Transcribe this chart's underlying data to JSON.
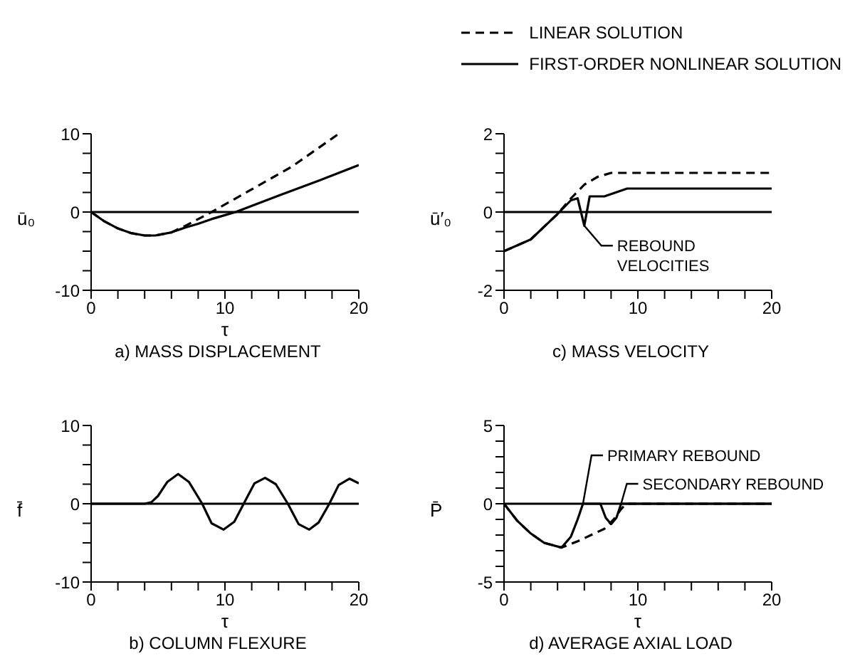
{
  "chart_data": [
    {
      "type": "line",
      "title": "a) MASS DISPLACEMENT",
      "xlabel": "τ",
      "ylabel": "ū₀",
      "legend": "top right",
      "xlim": [
        0,
        20
      ],
      "ylim": [
        -10,
        10
      ],
      "xticks": [
        0,
        {
          "value": 2,
          "label": null
        },
        {
          "value": 4,
          "label": null
        },
        {
          "value": 6,
          "label": null
        },
        {
          "value": 8,
          "label": null
        },
        10,
        {
          "value": 12,
          "label": null
        },
        {
          "value": 14,
          "label": null
        },
        {
          "value": 16,
          "label": null
        },
        {
          "value": 18,
          "label": null
        },
        20
      ],
      "yticks": [
        -10,
        {
          "value": -7.5,
          "label": null
        },
        {
          "value": -5,
          "label": null
        },
        {
          "value": -2.5,
          "label": null
        },
        0,
        {
          "value": 2.5,
          "label": null
        },
        {
          "value": 5,
          "label": null
        },
        {
          "value": 7.5,
          "label": null
        },
        10
      ],
      "ref_lines": [
        {
          "axis": "y",
          "value": 0,
          "color": "#000000"
        }
      ],
      "series": [
        {
          "name": "LINEAR SOLUTION",
          "color": "#000000",
          "line_style": "dashed",
          "x": [
            0,
            1,
            2,
            3,
            4,
            4.8,
            6,
            7,
            8,
            9,
            12,
            15,
            18.5
          ],
          "values": [
            0,
            -1.2,
            -2.1,
            -2.7,
            -3,
            -3,
            -2.6,
            -1.8,
            -0.9,
            0,
            2.9,
            5.8,
            10
          ]
        },
        {
          "name": "FIRST-ORDER NONLINEAR SOLUTION",
          "color": "#000000",
          "line_style": "solid",
          "x": [
            0,
            1,
            2,
            3,
            4,
            4.8,
            6,
            7,
            8,
            9,
            10,
            10.8,
            14,
            17,
            20
          ],
          "values": [
            0,
            -1.2,
            -2.1,
            -2.7,
            -3,
            -3,
            -2.6,
            -2,
            -1.5,
            -0.9,
            -0.4,
            0,
            2.1,
            4,
            6
          ]
        }
      ]
    },
    {
      "type": "line",
      "title": "c) MASS VELOCITY",
      "ylabel": "ū′₀",
      "xlim": [
        0,
        20
      ],
      "ylim": [
        -2,
        2
      ],
      "xticks": [
        0,
        {
          "value": 2,
          "label": null
        },
        {
          "value": 4,
          "label": null
        },
        {
          "value": 6,
          "label": null
        },
        {
          "value": 8,
          "label": null
        },
        10,
        {
          "value": 12,
          "label": null
        },
        {
          "value": 14,
          "label": null
        },
        {
          "value": 16,
          "label": null
        },
        {
          "value": 18,
          "label": null
        },
        20
      ],
      "yticks": [
        -2,
        {
          "value": -1.5,
          "label": null
        },
        {
          "value": -1,
          "label": null
        },
        {
          "value": -0.5,
          "label": null
        },
        0,
        {
          "value": 0.5,
          "label": null
        },
        {
          "value": 1,
          "label": null
        },
        {
          "value": 1.5,
          "label": null
        },
        2
      ],
      "ref_lines": [
        {
          "axis": "y",
          "value": 0,
          "color": "#000000"
        }
      ],
      "annotations": [
        {
          "text": "REBOUND VELOCITIES",
          "x": 6,
          "y": -0.35
        }
      ],
      "series": [
        {
          "color": "#000000",
          "line_style": "dashed",
          "x": [
            0,
            2,
            4,
            5,
            6,
            7,
            8,
            20
          ],
          "values": [
            -1,
            -0.7,
            -0.05,
            0.35,
            0.7,
            0.9,
            1,
            1
          ]
        },
        {
          "color": "#000000",
          "line_style": "solid",
          "x": [
            0,
            2,
            4,
            5,
            5.5,
            6,
            6.4,
            7.5,
            9.2,
            20
          ],
          "values": [
            -1,
            -0.7,
            -0.05,
            0.3,
            0.35,
            -0.35,
            0.4,
            0.4,
            0.6,
            0.6
          ]
        }
      ]
    },
    {
      "type": "line",
      "title": "b) COLUMN FLEXURE",
      "xlabel": "τ",
      "ylabel": "f̄",
      "xlim": [
        0,
        20
      ],
      "ylim": [
        -10,
        10
      ],
      "xticks": [
        0,
        {
          "value": 2,
          "label": null
        },
        {
          "value": 4,
          "label": null
        },
        {
          "value": 6,
          "label": null
        },
        {
          "value": 8,
          "label": null
        },
        10,
        {
          "value": 12,
          "label": null
        },
        {
          "value": 14,
          "label": null
        },
        {
          "value": 16,
          "label": null
        },
        {
          "value": 18,
          "label": null
        },
        20
      ],
      "yticks": [
        -10,
        {
          "value": -7.5,
          "label": null
        },
        {
          "value": -5,
          "label": null
        },
        {
          "value": -2.5,
          "label": null
        },
        0,
        {
          "value": 2.5,
          "label": null
        },
        {
          "value": 5,
          "label": null
        },
        {
          "value": 7.5,
          "label": null
        },
        10
      ],
      "ref_lines": [
        {
          "axis": "y",
          "value": 0,
          "color": "#000000"
        }
      ],
      "series": [
        {
          "color": "#000000",
          "line_style": "solid",
          "x": [
            0,
            4,
            4.5,
            5,
            5.7,
            6.5,
            7.3,
            8.3,
            9,
            9.9,
            10.7,
            11.4,
            12.2,
            13,
            13.8,
            14.7,
            15.5,
            16.3,
            17,
            17.8,
            18.5,
            19.3,
            20
          ],
          "values": [
            0,
            0,
            0.2,
            1,
            2.8,
            3.8,
            2.8,
            0,
            -2.5,
            -3.3,
            -2.3,
            0,
            2.6,
            3.3,
            2.5,
            0,
            -2.6,
            -3.3,
            -2.4,
            0,
            2.4,
            3.2,
            2.6
          ]
        }
      ]
    },
    {
      "type": "line",
      "title": "d) AVERAGE AXIAL LOAD",
      "xlabel": "τ",
      "ylabel": "P̄",
      "xlim": [
        0,
        20
      ],
      "ylim": [
        -5,
        5
      ],
      "xticks": [
        0,
        {
          "value": 2,
          "label": null
        },
        {
          "value": 4,
          "label": null
        },
        {
          "value": 6,
          "label": null
        },
        {
          "value": 8,
          "label": null
        },
        10,
        {
          "value": 12,
          "label": null
        },
        {
          "value": 14,
          "label": null
        },
        {
          "value": 16,
          "label": null
        },
        {
          "value": 18,
          "label": null
        },
        20
      ],
      "yticks": [
        -5,
        {
          "value": -4,
          "label": null
        },
        {
          "value": -3,
          "label": null
        },
        {
          "value": -2,
          "label": null
        },
        {
          "value": -1,
          "label": null
        },
        0,
        {
          "value": 1,
          "label": null
        },
        {
          "value": 2,
          "label": null
        },
        {
          "value": 3,
          "label": null
        },
        {
          "value": 4,
          "label": null
        },
        5
      ],
      "ref_lines": [
        {
          "axis": "y",
          "value": 0,
          "color": "#000000"
        }
      ],
      "annotations": [
        {
          "text": "PRIMARY REBOUND",
          "x": 5.9,
          "y": 0
        },
        {
          "text": "SECONDARY REBOUND",
          "x": 8.75,
          "y": 0
        }
      ],
      "series": [
        {
          "color": "#000000",
          "line_style": "dashed",
          "x": [
            0,
            1,
            2,
            3,
            4.3,
            5.5,
            6.5,
            7.5,
            8.2,
            8.7,
            9.1,
            20
          ],
          "values": [
            0,
            -1.1,
            -1.9,
            -2.5,
            -2.8,
            -2.4,
            -2,
            -1.6,
            -1,
            -0.4,
            0,
            0
          ]
        },
        {
          "color": "#000000",
          "line_style": "solid",
          "x": [
            0,
            1,
            2,
            3,
            4.3,
            5,
            5.5,
            5.9,
            7.2,
            7.6,
            8,
            8.4,
            8.75,
            20
          ],
          "values": [
            0,
            -1.1,
            -1.9,
            -2.5,
            -2.8,
            -2.1,
            -1,
            0,
            0,
            -0.9,
            -1.3,
            -0.9,
            0,
            0
          ]
        }
      ]
    }
  ]
}
